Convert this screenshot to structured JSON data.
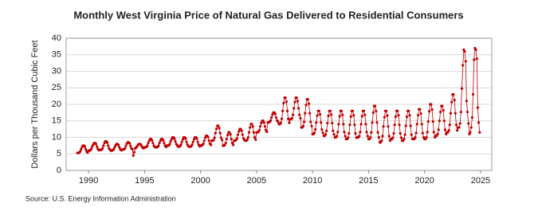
{
  "chart_data": {
    "type": "line",
    "title": "Monthly West Virginia Price of Natural Gas Delivered to Residential Consumers",
    "y_label": "Dollars per Thousand Cubic Feet",
    "source": "Source: U.S. Energy Information Administration",
    "xlim": [
      1988,
      2026
    ],
    "xticks": [
      1990,
      1995,
      2000,
      2005,
      2010,
      2015,
      2020,
      2025
    ],
    "ylim": [
      0,
      40
    ],
    "yticks": [
      0,
      5,
      10,
      15,
      20,
      25,
      30,
      35,
      40
    ],
    "grid": true,
    "x": [
      1989.0,
      1989.08,
      1989.17,
      1989.25,
      1989.33,
      1989.42,
      1989.5,
      1989.58,
      1989.67,
      1989.75,
      1989.83,
      1989.92,
      1990.0,
      1990.08,
      1990.17,
      1990.25,
      1990.33,
      1990.42,
      1990.5,
      1990.58,
      1990.67,
      1990.75,
      1990.83,
      1990.92,
      1991.0,
      1991.08,
      1991.17,
      1991.25,
      1991.33,
      1991.42,
      1991.5,
      1991.58,
      1991.67,
      1991.75,
      1991.83,
      1991.92,
      1992.0,
      1992.08,
      1992.17,
      1992.25,
      1992.33,
      1992.42,
      1992.5,
      1992.58,
      1992.67,
      1992.75,
      1992.83,
      1992.92,
      1993.0,
      1993.08,
      1993.17,
      1993.25,
      1993.33,
      1993.42,
      1993.5,
      1993.58,
      1993.67,
      1993.75,
      1993.83,
      1993.92,
      1994.0,
      1994.08,
      1994.17,
      1994.25,
      1994.33,
      1994.42,
      1994.5,
      1994.58,
      1994.67,
      1994.75,
      1994.83,
      1994.92,
      1995.0,
      1995.08,
      1995.17,
      1995.25,
      1995.33,
      1995.42,
      1995.5,
      1995.58,
      1995.67,
      1995.75,
      1995.83,
      1995.92,
      1996.0,
      1996.08,
      1996.17,
      1996.25,
      1996.33,
      1996.42,
      1996.5,
      1996.58,
      1996.67,
      1996.75,
      1996.83,
      1996.92,
      1997.0,
      1997.08,
      1997.17,
      1997.25,
      1997.33,
      1997.42,
      1997.5,
      1997.58,
      1997.67,
      1997.75,
      1997.83,
      1997.92,
      1998.0,
      1998.08,
      1998.17,
      1998.25,
      1998.33,
      1998.42,
      1998.5,
      1998.58,
      1998.67,
      1998.75,
      1998.83,
      1998.92,
      1999.0,
      1999.08,
      1999.17,
      1999.25,
      1999.33,
      1999.42,
      1999.5,
      1999.58,
      1999.67,
      1999.75,
      1999.83,
      1999.92,
      2000.0,
      2000.08,
      2000.17,
      2000.25,
      2000.33,
      2000.42,
      2000.5,
      2000.58,
      2000.67,
      2000.75,
      2000.83,
      2000.92,
      2001.0,
      2001.08,
      2001.17,
      2001.25,
      2001.33,
      2001.42,
      2001.5,
      2001.58,
      2001.67,
      2001.75,
      2001.83,
      2001.92,
      2002.0,
      2002.08,
      2002.17,
      2002.25,
      2002.33,
      2002.42,
      2002.5,
      2002.58,
      2002.67,
      2002.75,
      2002.83,
      2002.92,
      2003.0,
      2003.08,
      2003.17,
      2003.25,
      2003.33,
      2003.42,
      2003.5,
      2003.58,
      2003.67,
      2003.75,
      2003.83,
      2003.92,
      2004.0,
      2004.08,
      2004.17,
      2004.25,
      2004.33,
      2004.42,
      2004.5,
      2004.58,
      2004.67,
      2004.75,
      2004.83,
      2004.92,
      2005.0,
      2005.08,
      2005.17,
      2005.25,
      2005.33,
      2005.42,
      2005.5,
      2005.58,
      2005.67,
      2005.75,
      2005.83,
      2005.92,
      2006.0,
      2006.08,
      2006.17,
      2006.25,
      2006.33,
      2006.42,
      2006.5,
      2006.58,
      2006.67,
      2006.75,
      2006.83,
      2006.92,
      2007.0,
      2007.08,
      2007.17,
      2007.25,
      2007.33,
      2007.42,
      2007.5,
      2007.58,
      2007.67,
      2007.75,
      2007.83,
      2007.92,
      2008.0,
      2008.08,
      2008.17,
      2008.25,
      2008.33,
      2008.42,
      2008.5,
      2008.58,
      2008.67,
      2008.75,
      2008.83,
      2008.92,
      2009.0,
      2009.08,
      2009.17,
      2009.25,
      2009.33,
      2009.42,
      2009.5,
      2009.58,
      2009.67,
      2009.75,
      2009.83,
      2009.92,
      2010.0,
      2010.08,
      2010.17,
      2010.25,
      2010.33,
      2010.42,
      2010.5,
      2010.58,
      2010.67,
      2010.75,
      2010.83,
      2010.92,
      2011.0,
      2011.08,
      2011.17,
      2011.25,
      2011.33,
      2011.42,
      2011.5,
      2011.58,
      2011.67,
      2011.75,
      2011.83,
      2011.92,
      2012.0,
      2012.08,
      2012.17,
      2012.25,
      2012.33,
      2012.42,
      2012.5,
      2012.58,
      2012.67,
      2012.75,
      2012.83,
      2012.92,
      2013.0,
      2013.08,
      2013.17,
      2013.25,
      2013.33,
      2013.42,
      2013.5,
      2013.58,
      2013.67,
      2013.75,
      2013.83,
      2013.92,
      2014.0,
      2014.08,
      2014.17,
      2014.25,
      2014.33,
      2014.42,
      2014.5,
      2014.58,
      2014.67,
      2014.75,
      2014.83,
      2014.92,
      2015.0,
      2015.08,
      2015.17,
      2015.25,
      2015.33,
      2015.42,
      2015.5,
      2015.58,
      2015.67,
      2015.75,
      2015.83,
      2015.92,
      2016.0,
      2016.08,
      2016.17,
      2016.25,
      2016.33,
      2016.42,
      2016.5,
      2016.58,
      2016.67,
      2016.75,
      2016.83,
      2016.92,
      2017.0,
      2017.08,
      2017.17,
      2017.25,
      2017.33,
      2017.42,
      2017.5,
      2017.58,
      2017.67,
      2017.75,
      2017.83,
      2017.92,
      2018.0,
      2018.08,
      2018.17,
      2018.25,
      2018.33,
      2018.42,
      2018.5,
      2018.58,
      2018.67,
      2018.75,
      2018.83,
      2018.92,
      2019.0,
      2019.08,
      2019.17,
      2019.25,
      2019.33,
      2019.42,
      2019.5,
      2019.58,
      2019.67,
      2019.75,
      2019.83,
      2019.92,
      2020.0,
      2020.08,
      2020.17,
      2020.25,
      2020.33,
      2020.42,
      2020.5,
      2020.58,
      2020.67,
      2020.75,
      2020.83,
      2020.92,
      2021.0,
      2021.08,
      2021.17,
      2021.25,
      2021.33,
      2021.42,
      2021.5,
      2021.58,
      2021.67,
      2021.75,
      2021.83,
      2021.92,
      2022.0,
      2022.08,
      2022.17,
      2022.25,
      2022.33,
      2022.42,
      2022.5,
      2022.58,
      2022.67,
      2022.75,
      2022.83,
      2022.92,
      2023.0,
      2023.08,
      2023.17,
      2023.25,
      2023.33,
      2023.42,
      2023.5,
      2023.58,
      2023.67,
      2023.75,
      2023.83,
      2023.92,
      2024.0,
      2024.08,
      2024.17,
      2024.25,
      2024.33,
      2024.42,
      2024.5,
      2024.58,
      2024.67,
      2024.75,
      2024.83,
      2024.92
    ],
    "series": [
      {
        "color": "#c00000",
        "values": [
          5.3,
          5.3,
          5.4,
          5.7,
          6.4,
          7.1,
          7.5,
          7.5,
          7.2,
          6.4,
          5.7,
          5.4,
          6.0,
          6.0,
          6.1,
          6.5,
          7.2,
          7.8,
          8.3,
          8.3,
          8.0,
          7.2,
          6.5,
          6.1,
          6.2,
          6.2,
          6.3,
          6.7,
          7.5,
          8.3,
          8.8,
          8.8,
          8.4,
          7.5,
          6.7,
          6.3,
          6.0,
          6.0,
          6.1,
          6.4,
          7.0,
          7.6,
          8.0,
          8.0,
          7.7,
          7.0,
          6.4,
          6.1,
          6.3,
          6.3,
          6.4,
          6.7,
          7.4,
          8.1,
          8.5,
          8.5,
          8.2,
          7.4,
          6.7,
          6.4,
          4.5,
          5.5,
          6.7,
          6.9,
          7.3,
          7.7,
          8.0,
          8.0,
          7.8,
          7.3,
          6.9,
          6.7,
          7.0,
          7.0,
          7.1,
          7.5,
          8.3,
          9.0,
          9.5,
          9.5,
          9.1,
          8.3,
          7.5,
          7.1,
          7.0,
          7.0,
          7.1,
          7.5,
          8.3,
          9.0,
          9.5,
          9.5,
          9.1,
          8.3,
          7.5,
          7.1,
          7.5,
          7.5,
          7.6,
          8.0,
          8.8,
          9.5,
          10.0,
          10.0,
          9.6,
          8.8,
          8.0,
          7.6,
          7.2,
          7.2,
          7.3,
          7.8,
          8.6,
          9.4,
          10.0,
          10.0,
          9.6,
          8.6,
          7.8,
          7.3,
          7.2,
          7.2,
          7.3,
          7.8,
          8.6,
          9.4,
          10.0,
          10.0,
          9.6,
          8.6,
          7.8,
          7.3,
          7.5,
          7.5,
          7.7,
          8.1,
          9.0,
          9.9,
          10.5,
          10.5,
          10.1,
          9.0,
          8.1,
          7.7,
          9.0,
          9.0,
          9.2,
          9.9,
          11.3,
          12.6,
          13.5,
          13.5,
          12.8,
          11.3,
          9.9,
          9.2,
          7.5,
          7.5,
          7.7,
          8.3,
          9.5,
          10.7,
          11.5,
          11.5,
          10.9,
          9.5,
          8.3,
          7.7,
          9.0,
          9.0,
          9.2,
          9.7,
          10.8,
          11.8,
          12.5,
          12.5,
          12.0,
          10.8,
          9.7,
          9.2,
          9.0,
          9.0,
          9.3,
          10.0,
          11.5,
          13.0,
          14.0,
          14.0,
          13.3,
          11.5,
          10.0,
          9.3,
          11.5,
          11.5,
          11.7,
          12.2,
          13.3,
          14.3,
          15.0,
          15.0,
          14.5,
          13.3,
          12.2,
          11.7,
          14.5,
          14.5,
          14.7,
          15.1,
          16.0,
          16.9,
          17.5,
          17.5,
          17.1,
          16.0,
          15.1,
          14.7,
          14.0,
          14.0,
          14.4,
          15.6,
          18.0,
          20.4,
          22.0,
          22.0,
          20.8,
          18.0,
          15.6,
          14.4,
          15.5,
          15.5,
          15.8,
          16.8,
          18.8,
          20.7,
          22.0,
          22.0,
          21.0,
          18.8,
          16.8,
          15.8,
          13.0,
          13.0,
          13.4,
          14.7,
          17.3,
          19.8,
          21.5,
          21.5,
          20.2,
          17.3,
          14.7,
          13.4,
          11.0,
          11.0,
          11.4,
          12.4,
          14.5,
          16.6,
          18.0,
          18.0,
          17.0,
          14.5,
          12.4,
          11.4,
          10.5,
          10.5,
          10.9,
          12.0,
          14.3,
          16.5,
          18.0,
          18.0,
          16.9,
          14.3,
          12.0,
          10.9,
          10.0,
          10.0,
          10.4,
          11.6,
          14.0,
          16.4,
          18.0,
          18.0,
          16.8,
          14.0,
          11.6,
          10.4,
          9.5,
          9.5,
          9.9,
          11.2,
          13.8,
          16.3,
          18.0,
          18.0,
          16.7,
          13.8,
          11.2,
          9.9,
          10.0,
          10.0,
          10.4,
          11.6,
          14.0,
          16.4,
          18.0,
          18.0,
          16.8,
          14.0,
          11.6,
          10.4,
          9.5,
          9.5,
          10.0,
          11.5,
          14.5,
          17.5,
          19.5,
          19.5,
          18.0,
          14.5,
          11.5,
          10.0,
          8.5,
          8.5,
          9.0,
          10.4,
          13.3,
          16.1,
          18.0,
          18.0,
          16.6,
          13.3,
          10.4,
          9.0,
          9.5,
          9.5,
          9.9,
          11.2,
          13.8,
          16.3,
          18.0,
          18.0,
          16.7,
          13.8,
          11.2,
          9.9,
          9.0,
          9.0,
          9.5,
          10.8,
          13.5,
          16.2,
          18.0,
          18.0,
          16.7,
          13.5,
          10.8,
          9.5,
          9.5,
          9.5,
          10.0,
          11.3,
          14.0,
          16.7,
          18.5,
          18.5,
          17.2,
          14.0,
          11.3,
          10.0,
          9.5,
          9.5,
          10.0,
          11.6,
          14.8,
          17.9,
          20.0,
          20.0,
          18.4,
          14.8,
          11.6,
          10.0,
          10.5,
          10.5,
          11.0,
          12.3,
          15.0,
          17.7,
          19.5,
          19.5,
          18.2,
          15.0,
          12.3,
          11.0,
          11.5,
          11.5,
          12.1,
          13.8,
          17.3,
          20.7,
          23.0,
          23.0,
          21.3,
          17.3,
          13.8,
          12.1,
          13.0,
          13.0,
          14.2,
          17.7,
          24.8,
          31.8,
          36.5,
          36.0,
          33.0,
          21.0,
          17.7,
          14.2,
          11.0,
          11.5,
          13.0,
          16.0,
          23.0,
          33.5,
          37.0,
          36.5,
          33.8,
          19.0,
          14.5,
          11.5
        ]
      }
    ]
  }
}
